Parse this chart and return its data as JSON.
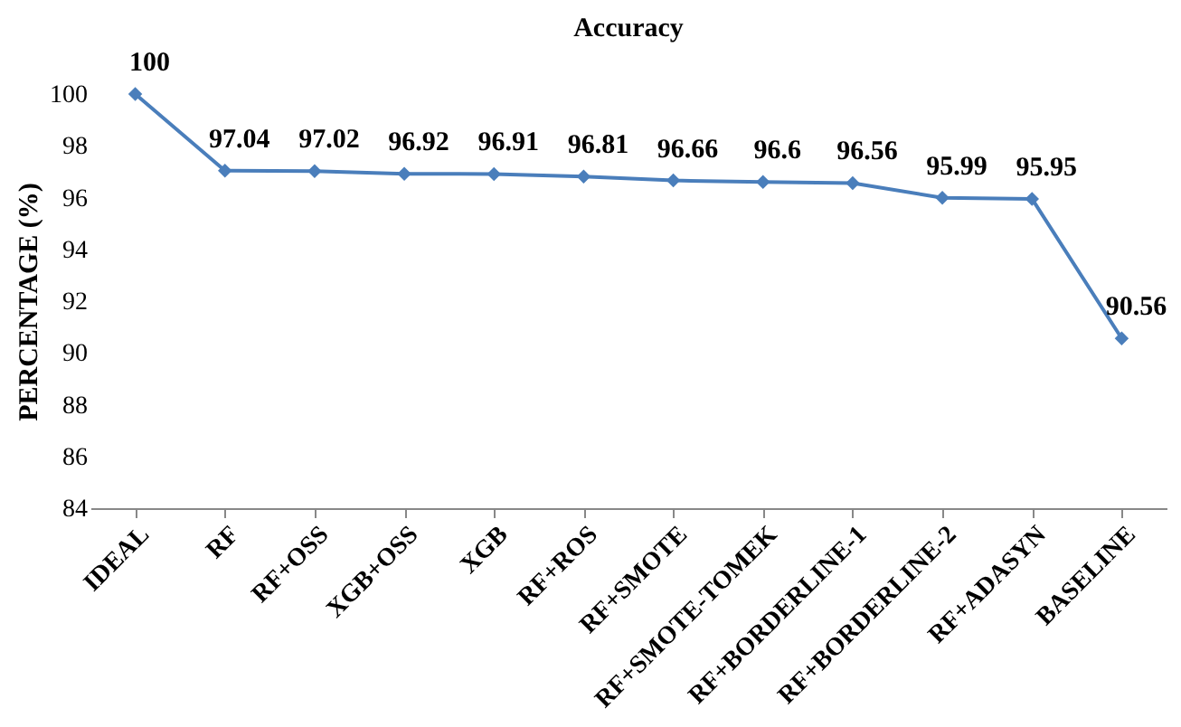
{
  "chart_data": {
    "type": "line",
    "title": "Accuracy",
    "ylabel": "PERCENTAGE (%)",
    "categories": [
      "IDEAL",
      "RF",
      "RF+OSS",
      "XGB+OSS",
      "XGB",
      "RF+ROS",
      "RF+SMOTE",
      "RF+SMOTE-TOMEK",
      "RF+BORDERLINE-1",
      "RF+BORDERLINE-2",
      "RF+ADASYN",
      "BASELINE"
    ],
    "series": [
      {
        "color": "#4a7ebb",
        "values": [
          100,
          97.04,
          97.02,
          96.92,
          96.91,
          96.81,
          96.66,
          96.6,
          96.56,
          95.99,
          95.95,
          90.56
        ]
      }
    ],
    "ylim": [
      84,
      100
    ],
    "yticks": [
      84,
      86,
      88,
      90,
      92,
      94,
      96,
      98,
      100
    ],
    "data_labels": true,
    "marker": "diamond",
    "grid": false
  }
}
